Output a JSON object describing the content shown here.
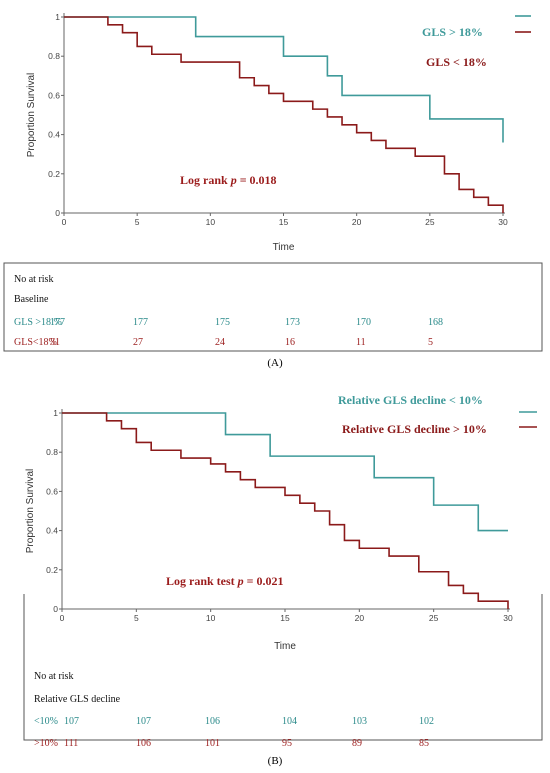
{
  "colors": {
    "teal": "#3f9a9a",
    "red": "#8b1a1a",
    "risk_teal": "#2a8a8a",
    "risk_red": "#9b1c1c"
  },
  "panel_a": {
    "label": "(A)",
    "annotation_prefix": "Log rank ",
    "annotation_p": "p",
    "annotation_suffix": " = 0.018",
    "risk_table": {
      "title": "No at risk",
      "subtitle": "Baseline",
      "rows": [
        {
          "label": "GLS >18 %",
          "values": [
            "177",
            "177",
            "175",
            "173",
            "170",
            "168"
          ]
        },
        {
          "label": "GLS<18%",
          "values": [
            "31",
            "27",
            "24",
            "16",
            "11",
            "5"
          ]
        }
      ]
    }
  },
  "panel_b": {
    "label": "(B)",
    "annotation_prefix": "Log rank test ",
    "annotation_p": "p",
    "annotation_suffix": " = 0.021",
    "risk_table": {
      "title": "No at risk",
      "subtitle": "Relative GLS decline",
      "rows": [
        {
          "label": "<10%",
          "values": [
            "107",
            "107",
            "106",
            "104",
            "103",
            "102"
          ]
        },
        {
          "label": ">10%",
          "values": [
            "111",
            "106",
            "101",
            "95",
            "89",
            "85"
          ]
        }
      ]
    }
  },
  "chart_data": [
    {
      "type": "line",
      "step": true,
      "xlabel": "Time",
      "ylabel": "Proportion Survival",
      "xlim": [
        0,
        30
      ],
      "ylim": [
        0,
        1
      ],
      "xticks": [
        "0",
        "5",
        "10",
        "15",
        "20",
        "25",
        "30"
      ],
      "yticks": [
        "0",
        "0.2",
        "0.4",
        "0.6",
        "0.8",
        "1"
      ],
      "series": [
        {
          "name": "GLS > 18%",
          "color": "teal",
          "x": [
            0,
            9,
            15,
            18,
            19,
            25,
            30
          ],
          "y": [
            1,
            0.9,
            0.8,
            0.7,
            0.6,
            0.48,
            0.36
          ]
        },
        {
          "name": "GLS < 18%",
          "color": "red",
          "x": [
            0,
            3,
            4,
            5,
            6,
            8,
            12,
            13,
            14,
            15,
            17,
            18,
            19,
            20,
            21,
            22,
            24,
            26,
            27,
            28,
            29,
            30
          ],
          "y": [
            1,
            0.96,
            0.92,
            0.85,
            0.81,
            0.77,
            0.69,
            0.65,
            0.61,
            0.57,
            0.53,
            0.49,
            0.45,
            0.41,
            0.37,
            0.33,
            0.29,
            0.2,
            0.12,
            0.08,
            0.04,
            0
          ]
        }
      ]
    },
    {
      "type": "line",
      "step": true,
      "xlabel": "Time",
      "ylabel": "Proportion Survival",
      "xlim": [
        0,
        30
      ],
      "ylim": [
        0,
        1
      ],
      "xticks": [
        "0",
        "5",
        "10",
        "15",
        "20",
        "25",
        "30"
      ],
      "yticks": [
        "0",
        "0.2",
        "0.4",
        "0.6",
        "0.8",
        "1"
      ],
      "series": [
        {
          "name": "Relative GLS decline < 10%",
          "color": "teal",
          "x": [
            0,
            11,
            14,
            21,
            25,
            28,
            30
          ],
          "y": [
            1,
            0.89,
            0.78,
            0.67,
            0.53,
            0.4,
            0.4
          ]
        },
        {
          "name": "Relative GLS decline > 10%",
          "color": "red",
          "x": [
            0,
            3,
            4,
            5,
            6,
            8,
            10,
            11,
            12,
            13,
            15,
            16,
            17,
            18,
            19,
            20,
            22,
            24,
            26,
            27,
            28,
            30
          ],
          "y": [
            1,
            0.96,
            0.92,
            0.85,
            0.81,
            0.77,
            0.74,
            0.7,
            0.66,
            0.62,
            0.58,
            0.54,
            0.5,
            0.43,
            0.35,
            0.31,
            0.27,
            0.19,
            0.12,
            0.08,
            0.04,
            0
          ]
        }
      ]
    }
  ]
}
